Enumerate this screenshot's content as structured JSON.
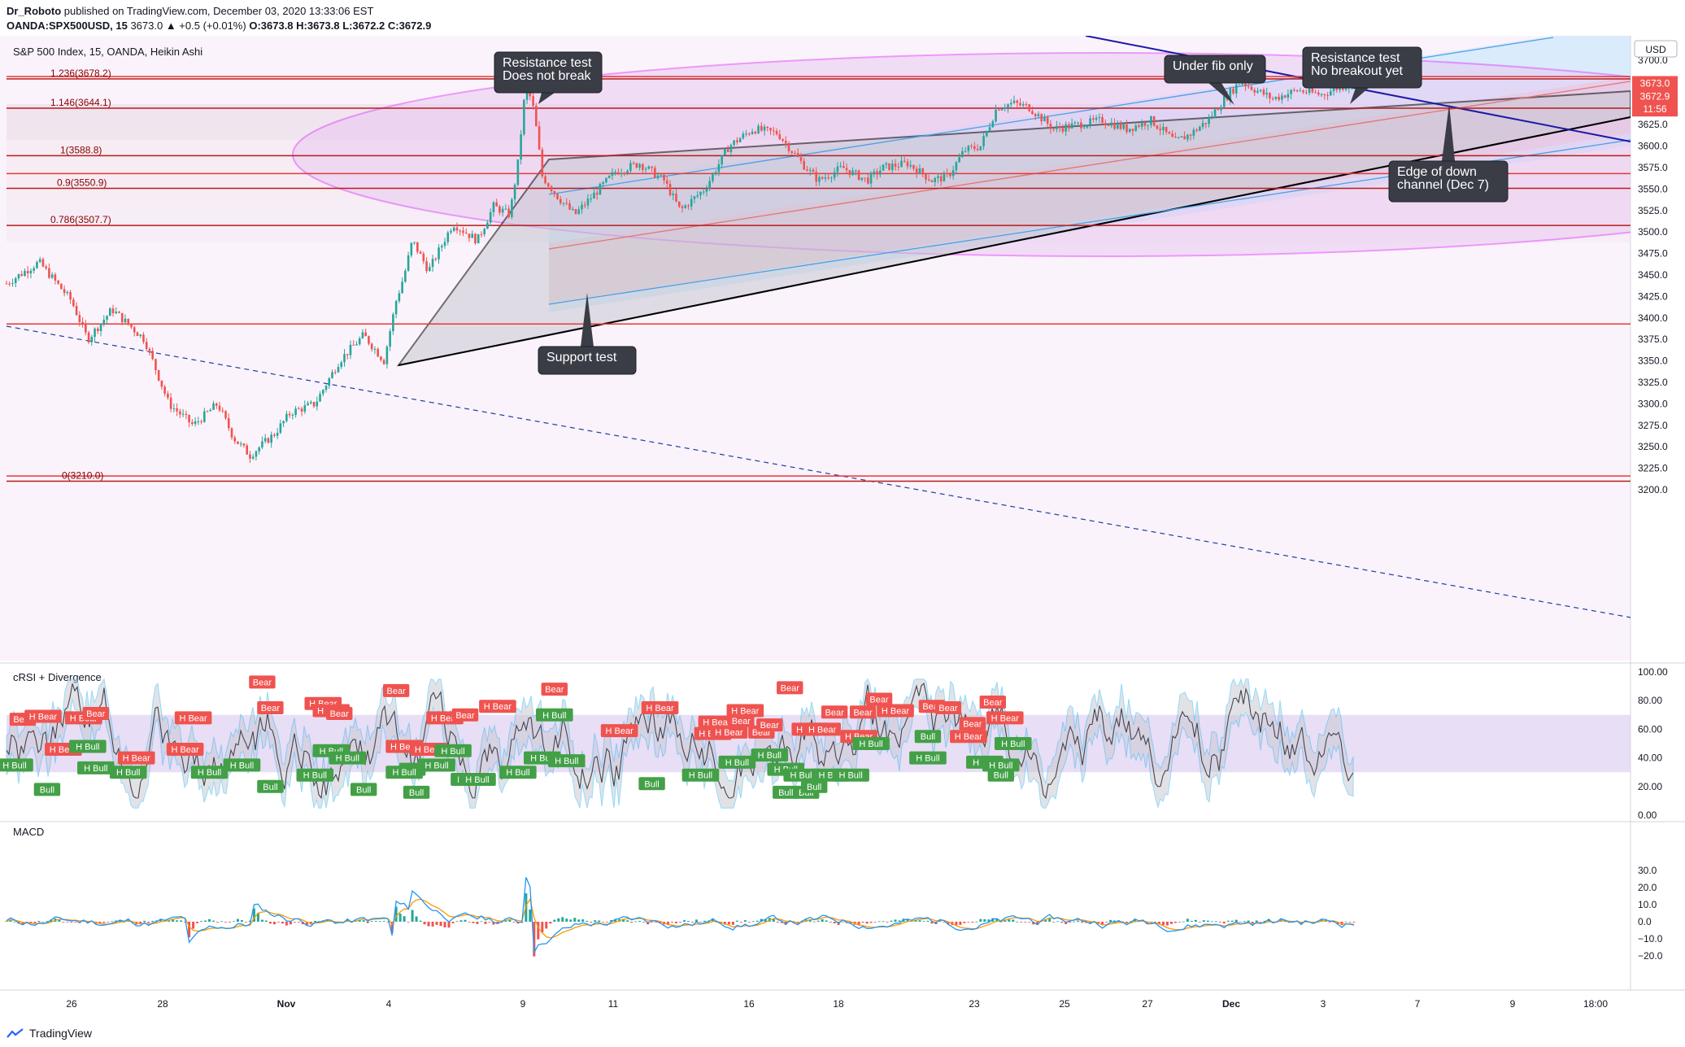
{
  "header": {
    "author": "Dr_Roboto",
    "published": "published on TradingView.com, December 03, 2020 13:33:06 EST",
    "symbol": "OANDA:SPX500USD, 15",
    "change": "3673.0 ▲ +0.5 (+0.01%)",
    "ohlc": "O:3673.8 H:3673.8 L:3672.2 C:3672.9"
  },
  "footer": {
    "brand": "TradingView"
  },
  "colors": {
    "bull": "#26a69a",
    "bear": "#ef5350",
    "fib": "#b71c1c",
    "ellipse": "#e040fb",
    "channel_blue": "#2196f3",
    "down_line": "#1a1aa6"
  },
  "chart_data": [
    {
      "type": "candlestick",
      "title": "S&P 500 Index, 15, OANDA, Heikin Ashi",
      "ylabel": "USD",
      "ylim": [
        3185,
        3745
      ],
      "yticks": [
        3200,
        3225,
        3250,
        3275,
        3300,
        3325,
        3350,
        3375,
        3400,
        3425,
        3450,
        3475,
        3500,
        3525,
        3550,
        3575,
        3600,
        3625,
        3650,
        3675,
        3700
      ],
      "xticks": [
        "26",
        "28",
        "Nov",
        "4",
        "9",
        "11",
        "16",
        "18",
        "23",
        "25",
        "27",
        "Dec",
        "3",
        "7",
        "9",
        "18:00"
      ],
      "price_path": [
        [
          0,
          3440
        ],
        [
          8,
          3465
        ],
        [
          16,
          3420
        ],
        [
          20,
          3375
        ],
        [
          26,
          3410
        ],
        [
          34,
          3375
        ],
        [
          40,
          3300
        ],
        [
          46,
          3275
        ],
        [
          52,
          3300
        ],
        [
          56,
          3260
        ],
        [
          60,
          3240
        ],
        [
          66,
          3265
        ],
        [
          70,
          3290
        ],
        [
          76,
          3300
        ],
        [
          82,
          3350
        ],
        [
          88,
          3380
        ],
        [
          93,
          3350
        ],
        [
          96,
          3420
        ],
        [
          98,
          3450
        ],
        [
          100,
          3490
        ],
        [
          104,
          3455
        ],
        [
          110,
          3510
        ],
        [
          116,
          3490
        ],
        [
          120,
          3530
        ],
        [
          124,
          3520
        ],
        [
          126,
          3580
        ],
        [
          128,
          3675
        ],
        [
          130,
          3640
        ],
        [
          132,
          3565
        ],
        [
          136,
          3540
        ],
        [
          140,
          3520
        ],
        [
          146,
          3550
        ],
        [
          150,
          3570
        ],
        [
          156,
          3580
        ],
        [
          162,
          3560
        ],
        [
          166,
          3525
        ],
        [
          172,
          3550
        ],
        [
          178,
          3600
        ],
        [
          184,
          3620
        ],
        [
          190,
          3615
        ],
        [
          196,
          3580
        ],
        [
          200,
          3560
        ],
        [
          206,
          3575
        ],
        [
          212,
          3560
        ],
        [
          216,
          3575
        ],
        [
          222,
          3580
        ],
        [
          228,
          3560
        ],
        [
          232,
          3565
        ],
        [
          236,
          3595
        ],
        [
          240,
          3600
        ],
        [
          244,
          3645
        ],
        [
          248,
          3650
        ],
        [
          252,
          3645
        ],
        [
          258,
          3620
        ],
        [
          264,
          3625
        ],
        [
          270,
          3630
        ],
        [
          276,
          3620
        ],
        [
          282,
          3630
        ],
        [
          288,
          3605
        ],
        [
          292,
          3615
        ],
        [
          296,
          3630
        ],
        [
          300,
          3655
        ],
        [
          304,
          3675
        ],
        [
          308,
          3665
        ],
        [
          312,
          3655
        ],
        [
          318,
          3665
        ],
        [
          324,
          3660
        ],
        [
          328,
          3668
        ],
        [
          332,
          3673
        ]
      ],
      "fib_levels": [
        {
          "ratio": "1.236",
          "price": 3678.2,
          "label": "1.236(3678.2)"
        },
        {
          "ratio": "1.146",
          "price": 3644.1,
          "label": "1.146(3644.1)"
        },
        {
          "ratio": "1",
          "price": 3588.8,
          "label": "1(3588.8)"
        },
        {
          "ratio": "0.9",
          "price": 3550.9,
          "label": "0.9(3550.9)"
        },
        {
          "ratio": "0.786",
          "price": 3507.7,
          "label": "0.786(3507.7)"
        },
        {
          "ratio": "0",
          "price": 3210.0,
          "label": "0(3210.0)"
        }
      ],
      "horizontal_lines": [
        3681,
        3568,
        3393,
        3216
      ],
      "price_labels": [
        {
          "text": "3673.0",
          "price": 3673.0,
          "color": "#ef5350"
        },
        {
          "text": "3672.9",
          "price": 3658.0,
          "color": "#ef5350"
        },
        {
          "text": "11:56",
          "price": 3643.0,
          "color": "#ef5350"
        }
      ],
      "annotations": [
        {
          "text": [
            "Resistance test",
            "Does not break"
          ]
        },
        {
          "text": [
            "Under fib only"
          ]
        },
        {
          "text": [
            "Resistance test",
            "No breakout yet"
          ]
        },
        {
          "text": [
            "Edge of down",
            "channel (Dec 7)"
          ]
        },
        {
          "text": [
            "Support test"
          ]
        }
      ]
    },
    {
      "type": "line",
      "title": "cRSI + Divergence",
      "ylim": [
        0,
        100
      ],
      "yticks": [
        0,
        20,
        40,
        60,
        80,
        100
      ],
      "band": [
        30,
        70
      ],
      "signals": [
        {
          "t": "Bear",
          "x": 4,
          "y": 67
        },
        {
          "t": "H Bear",
          "x": 9,
          "y": 69
        },
        {
          "t": "H Bear",
          "x": 19,
          "y": 68
        },
        {
          "t": "Bear",
          "x": 22,
          "y": 71
        },
        {
          "t": "H Bull",
          "x": 2,
          "y": 35
        },
        {
          "t": "Bull",
          "x": 10,
          "y": 18
        },
        {
          "t": "H Bear",
          "x": 14,
          "y": 46
        },
        {
          "t": "H Bull",
          "x": 20,
          "y": 48
        },
        {
          "t": "H Bull",
          "x": 22,
          "y": 33
        },
        {
          "t": "H Bear",
          "x": 32,
          "y": 40
        },
        {
          "t": "H Bull",
          "x": 30,
          "y": 30
        },
        {
          "t": "Bear",
          "x": 63,
          "y": 93
        },
        {
          "t": "H Bear",
          "x": 46,
          "y": 68
        },
        {
          "t": "Bear",
          "x": 65,
          "y": 75
        },
        {
          "t": "H Bear",
          "x": 44,
          "y": 46
        },
        {
          "t": "H Bull",
          "x": 50,
          "y": 30
        },
        {
          "t": "H Bull",
          "x": 58,
          "y": 35
        },
        {
          "t": "Bull",
          "x": 65,
          "y": 20
        },
        {
          "t": "H Bear",
          "x": 78,
          "y": 78
        },
        {
          "t": "H Bear",
          "x": 80,
          "y": 73
        },
        {
          "t": "Bear",
          "x": 82,
          "y": 71
        },
        {
          "t": "H Bull",
          "x": 80,
          "y": 45
        },
        {
          "t": "H Bull",
          "x": 76,
          "y": 28
        },
        {
          "t": "H Bull",
          "x": 84,
          "y": 40
        },
        {
          "t": "Bull",
          "x": 88,
          "y": 18
        },
        {
          "t": "Bear",
          "x": 96,
          "y": 87
        },
        {
          "t": "H Bear",
          "x": 98,
          "y": 48
        },
        {
          "t": "Bull",
          "x": 100,
          "y": 32
        },
        {
          "t": "H Bull",
          "x": 98,
          "y": 30
        },
        {
          "t": "Bull",
          "x": 101,
          "y": 16
        },
        {
          "t": "H Bear",
          "x": 104,
          "y": 46
        },
        {
          "t": "H Bear",
          "x": 108,
          "y": 68
        },
        {
          "t": "Bear",
          "x": 113,
          "y": 70
        },
        {
          "t": "H Bull",
          "x": 110,
          "y": 45
        },
        {
          "t": "H Bull",
          "x": 106,
          "y": 35
        },
        {
          "t": "H Bull",
          "x": 114,
          "y": 25
        },
        {
          "t": "H Bull",
          "x": 116,
          "y": 25
        },
        {
          "t": "H Bear",
          "x": 121,
          "y": 76
        },
        {
          "t": "Bear",
          "x": 135,
          "y": 88
        },
        {
          "t": "H Bull",
          "x": 135,
          "y": 70
        },
        {
          "t": "H Bull",
          "x": 132,
          "y": 40
        },
        {
          "t": "H Bull",
          "x": 138,
          "y": 38
        },
        {
          "t": "H Bull",
          "x": 126,
          "y": 30
        },
        {
          "t": "H Bear",
          "x": 151,
          "y": 59
        },
        {
          "t": "Bull",
          "x": 159,
          "y": 22
        },
        {
          "t": "H Bear",
          "x": 161,
          "y": 75
        },
        {
          "t": "H Bear",
          "x": 175,
          "y": 65
        },
        {
          "t": "H Bear",
          "x": 174,
          "y": 57
        },
        {
          "t": "H Bear",
          "x": 178,
          "y": 58
        },
        {
          "t": "Bear",
          "x": 181,
          "y": 66
        },
        {
          "t": "Bear",
          "x": 186,
          "y": 58
        },
        {
          "t": "H Bear",
          "x": 182,
          "y": 73
        },
        {
          "t": "H Bull",
          "x": 171,
          "y": 28
        },
        {
          "t": "H Bull",
          "x": 180,
          "y": 37
        },
        {
          "t": "H Bull",
          "x": 188,
          "y": 42
        },
        {
          "t": "H Bull",
          "x": 192,
          "y": 32
        },
        {
          "t": "Bear",
          "x": 193,
          "y": 89
        },
        {
          "t": "Bear",
          "x": 188,
          "y": 63
        },
        {
          "t": "Bull",
          "x": 192,
          "y": 16
        },
        {
          "t": "Bull",
          "x": 197,
          "y": 16
        },
        {
          "t": "Bull",
          "x": 199,
          "y": 20
        },
        {
          "t": "H Bull",
          "x": 196,
          "y": 28
        },
        {
          "t": "H Bull",
          "x": 203,
          "y": 28
        },
        {
          "t": "H Bear",
          "x": 198,
          "y": 60
        },
        {
          "t": "H Bear",
          "x": 201,
          "y": 60
        },
        {
          "t": "Bear",
          "x": 204,
          "y": 72
        },
        {
          "t": "H Bear",
          "x": 210,
          "y": 55
        },
        {
          "t": "Bear",
          "x": 215,
          "y": 81
        },
        {
          "t": "Bear",
          "x": 211,
          "y": 72
        },
        {
          "t": "H Bull",
          "x": 213,
          "y": 50
        },
        {
          "t": "H Bull",
          "x": 208,
          "y": 28
        },
        {
          "t": "H Bear",
          "x": 219,
          "y": 73
        },
        {
          "t": "Bear",
          "x": 228,
          "y": 76
        },
        {
          "t": "Bear",
          "x": 232,
          "y": 75
        },
        {
          "t": "H Bull",
          "x": 227,
          "y": 40
        },
        {
          "t": "Bull",
          "x": 227,
          "y": 55
        },
        {
          "t": "Bear",
          "x": 238,
          "y": 64
        },
        {
          "t": "H Bear",
          "x": 237,
          "y": 55
        },
        {
          "t": "Bear",
          "x": 243,
          "y": 79
        },
        {
          "t": "H Bear",
          "x": 246,
          "y": 68
        },
        {
          "t": "H Bull",
          "x": 241,
          "y": 37
        },
        {
          "t": "H Bull",
          "x": 245,
          "y": 35
        },
        {
          "t": "H Bull",
          "x": 248,
          "y": 50
        },
        {
          "t": "Bull",
          "x": 245,
          "y": 28
        }
      ]
    },
    {
      "type": "line",
      "title": "MACD",
      "ylim": [
        -22,
        32
      ],
      "yticks": [
        30,
        20,
        10,
        0,
        -10,
        -20
      ],
      "yticklabels": [
        "30.0",
        "20.0",
        "10.0",
        "0.0",
        "−10.0",
        "−20.0"
      ]
    }
  ]
}
